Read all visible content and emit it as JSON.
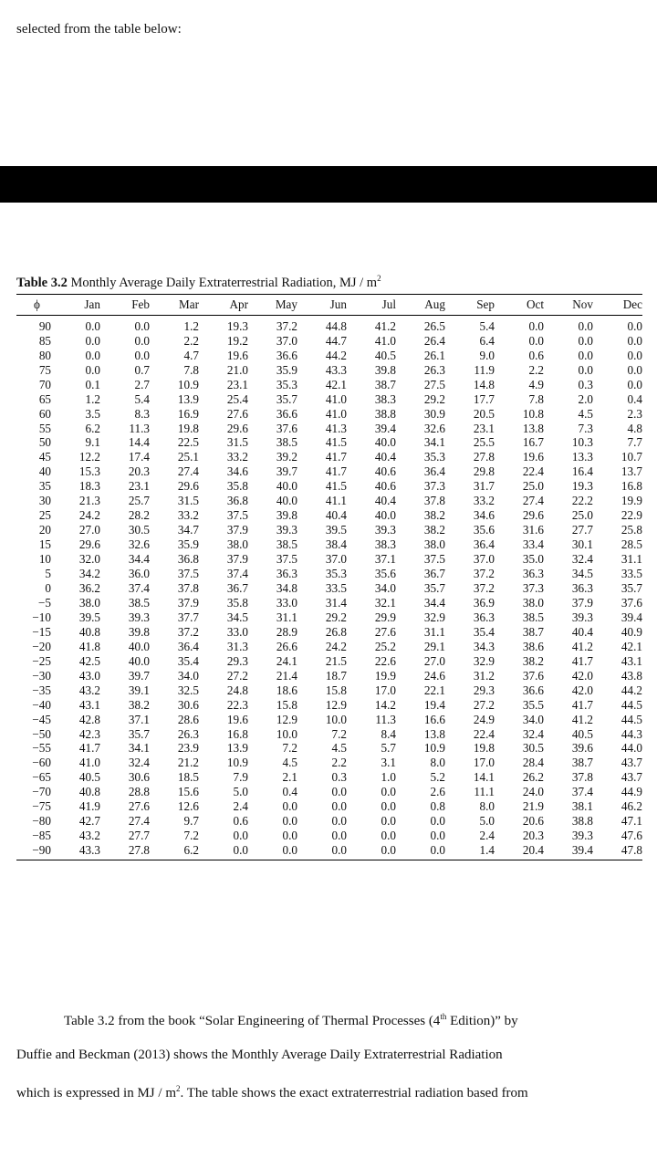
{
  "intro_text": "selected from the table below:",
  "table": {
    "caption_label": "Table 3.2",
    "caption_title": "Monthly Average Daily Extraterrestrial Radiation, MJ / m",
    "caption_sup": "2",
    "headers": [
      "ϕ",
      "Jan",
      "Feb",
      "Mar",
      "Apr",
      "May",
      "Jun",
      "Jul",
      "Aug",
      "Sep",
      "Oct",
      "Nov",
      "Dec"
    ],
    "rows": [
      [
        "90",
        "0.0",
        "0.0",
        "1.2",
        "19.3",
        "37.2",
        "44.8",
        "41.2",
        "26.5",
        "5.4",
        "0.0",
        "0.0",
        "0.0"
      ],
      [
        "85",
        "0.0",
        "0.0",
        "2.2",
        "19.2",
        "37.0",
        "44.7",
        "41.0",
        "26.4",
        "6.4",
        "0.0",
        "0.0",
        "0.0"
      ],
      [
        "80",
        "0.0",
        "0.0",
        "4.7",
        "19.6",
        "36.6",
        "44.2",
        "40.5",
        "26.1",
        "9.0",
        "0.6",
        "0.0",
        "0.0"
      ],
      [
        "75",
        "0.0",
        "0.7",
        "7.8",
        "21.0",
        "35.9",
        "43.3",
        "39.8",
        "26.3",
        "11.9",
        "2.2",
        "0.0",
        "0.0"
      ],
      [
        "70",
        "0.1",
        "2.7",
        "10.9",
        "23.1",
        "35.3",
        "42.1",
        "38.7",
        "27.5",
        "14.8",
        "4.9",
        "0.3",
        "0.0"
      ],
      [
        "65",
        "1.2",
        "5.4",
        "13.9",
        "25.4",
        "35.7",
        "41.0",
        "38.3",
        "29.2",
        "17.7",
        "7.8",
        "2.0",
        "0.4"
      ],
      [
        "60",
        "3.5",
        "8.3",
        "16.9",
        "27.6",
        "36.6",
        "41.0",
        "38.8",
        "30.9",
        "20.5",
        "10.8",
        "4.5",
        "2.3"
      ],
      [
        "55",
        "6.2",
        "11.3",
        "19.8",
        "29.6",
        "37.6",
        "41.3",
        "39.4",
        "32.6",
        "23.1",
        "13.8",
        "7.3",
        "4.8"
      ],
      [
        "50",
        "9.1",
        "14.4",
        "22.5",
        "31.5",
        "38.5",
        "41.5",
        "40.0",
        "34.1",
        "25.5",
        "16.7",
        "10.3",
        "7.7"
      ],
      [
        "45",
        "12.2",
        "17.4",
        "25.1",
        "33.2",
        "39.2",
        "41.7",
        "40.4",
        "35.3",
        "27.8",
        "19.6",
        "13.3",
        "10.7"
      ],
      [
        "40",
        "15.3",
        "20.3",
        "27.4",
        "34.6",
        "39.7",
        "41.7",
        "40.6",
        "36.4",
        "29.8",
        "22.4",
        "16.4",
        "13.7"
      ],
      [
        "35",
        "18.3",
        "23.1",
        "29.6",
        "35.8",
        "40.0",
        "41.5",
        "40.6",
        "37.3",
        "31.7",
        "25.0",
        "19.3",
        "16.8"
      ],
      [
        "30",
        "21.3",
        "25.7",
        "31.5",
        "36.8",
        "40.0",
        "41.1",
        "40.4",
        "37.8",
        "33.2",
        "27.4",
        "22.2",
        "19.9"
      ],
      [
        "25",
        "24.2",
        "28.2",
        "33.2",
        "37.5",
        "39.8",
        "40.4",
        "40.0",
        "38.2",
        "34.6",
        "29.6",
        "25.0",
        "22.9"
      ],
      [
        "20",
        "27.0",
        "30.5",
        "34.7",
        "37.9",
        "39.3",
        "39.5",
        "39.3",
        "38.2",
        "35.6",
        "31.6",
        "27.7",
        "25.8"
      ],
      [
        "15",
        "29.6",
        "32.6",
        "35.9",
        "38.0",
        "38.5",
        "38.4",
        "38.3",
        "38.0",
        "36.4",
        "33.4",
        "30.1",
        "28.5"
      ],
      [
        "10",
        "32.0",
        "34.4",
        "36.8",
        "37.9",
        "37.5",
        "37.0",
        "37.1",
        "37.5",
        "37.0",
        "35.0",
        "32.4",
        "31.1"
      ],
      [
        "5",
        "34.2",
        "36.0",
        "37.5",
        "37.4",
        "36.3",
        "35.3",
        "35.6",
        "36.7",
        "37.2",
        "36.3",
        "34.5",
        "33.5"
      ],
      [
        "0",
        "36.2",
        "37.4",
        "37.8",
        "36.7",
        "34.8",
        "33.5",
        "34.0",
        "35.7",
        "37.2",
        "37.3",
        "36.3",
        "35.7"
      ],
      [
        "−5",
        "38.0",
        "38.5",
        "37.9",
        "35.8",
        "33.0",
        "31.4",
        "32.1",
        "34.4",
        "36.9",
        "38.0",
        "37.9",
        "37.6"
      ],
      [
        "−10",
        "39.5",
        "39.3",
        "37.7",
        "34.5",
        "31.1",
        "29.2",
        "29.9",
        "32.9",
        "36.3",
        "38.5",
        "39.3",
        "39.4"
      ],
      [
        "−15",
        "40.8",
        "39.8",
        "37.2",
        "33.0",
        "28.9",
        "26.8",
        "27.6",
        "31.1",
        "35.4",
        "38.7",
        "40.4",
        "40.9"
      ],
      [
        "−20",
        "41.8",
        "40.0",
        "36.4",
        "31.3",
        "26.6",
        "24.2",
        "25.2",
        "29.1",
        "34.3",
        "38.6",
        "41.2",
        "42.1"
      ],
      [
        "−25",
        "42.5",
        "40.0",
        "35.4",
        "29.3",
        "24.1",
        "21.5",
        "22.6",
        "27.0",
        "32.9",
        "38.2",
        "41.7",
        "43.1"
      ],
      [
        "−30",
        "43.0",
        "39.7",
        "34.0",
        "27.2",
        "21.4",
        "18.7",
        "19.9",
        "24.6",
        "31.2",
        "37.6",
        "42.0",
        "43.8"
      ],
      [
        "−35",
        "43.2",
        "39.1",
        "32.5",
        "24.8",
        "18.6",
        "15.8",
        "17.0",
        "22.1",
        "29.3",
        "36.6",
        "42.0",
        "44.2"
      ],
      [
        "−40",
        "43.1",
        "38.2",
        "30.6",
        "22.3",
        "15.8",
        "12.9",
        "14.2",
        "19.4",
        "27.2",
        "35.5",
        "41.7",
        "44.5"
      ],
      [
        "−45",
        "42.8",
        "37.1",
        "28.6",
        "19.6",
        "12.9",
        "10.0",
        "11.3",
        "16.6",
        "24.9",
        "34.0",
        "41.2",
        "44.5"
      ],
      [
        "−50",
        "42.3",
        "35.7",
        "26.3",
        "16.8",
        "10.0",
        "7.2",
        "8.4",
        "13.8",
        "22.4",
        "32.4",
        "40.5",
        "44.3"
      ],
      [
        "−55",
        "41.7",
        "34.1",
        "23.9",
        "13.9",
        "7.2",
        "4.5",
        "5.7",
        "10.9",
        "19.8",
        "30.5",
        "39.6",
        "44.0"
      ],
      [
        "−60",
        "41.0",
        "32.4",
        "21.2",
        "10.9",
        "4.5",
        "2.2",
        "3.1",
        "8.0",
        "17.0",
        "28.4",
        "38.7",
        "43.7"
      ],
      [
        "−65",
        "40.5",
        "30.6",
        "18.5",
        "7.9",
        "2.1",
        "0.3",
        "1.0",
        "5.2",
        "14.1",
        "26.2",
        "37.8",
        "43.7"
      ],
      [
        "−70",
        "40.8",
        "28.8",
        "15.6",
        "5.0",
        "0.4",
        "0.0",
        "0.0",
        "2.6",
        "11.1",
        "24.0",
        "37.4",
        "44.9"
      ],
      [
        "−75",
        "41.9",
        "27.6",
        "12.6",
        "2.4",
        "0.0",
        "0.0",
        "0.0",
        "0.8",
        "8.0",
        "21.9",
        "38.1",
        "46.2"
      ],
      [
        "−80",
        "42.7",
        "27.4",
        "9.7",
        "0.6",
        "0.0",
        "0.0",
        "0.0",
        "0.0",
        "5.0",
        "20.6",
        "38.8",
        "47.1"
      ],
      [
        "−85",
        "43.2",
        "27.7",
        "7.2",
        "0.0",
        "0.0",
        "0.0",
        "0.0",
        "0.0",
        "2.4",
        "20.3",
        "39.3",
        "47.6"
      ],
      [
        "−90",
        "43.3",
        "27.8",
        "6.2",
        "0.0",
        "0.0",
        "0.0",
        "0.0",
        "0.0",
        "1.4",
        "20.4",
        "39.4",
        "47.8"
      ]
    ]
  },
  "body": {
    "line1": "Table 3.2 from the book “Solar Engineering of Thermal Processes (4",
    "line1_sup": "th",
    "line1_end": " Edition)” by",
    "line2": "Duffie and Beckman (2013) shows the Monthly Average Daily Extraterrestrial Radiation",
    "line3_a": "which is expressed in MJ / m",
    "line3_sup": "2",
    "line3_b": ". The table shows the exact extraterrestrial radiation based from"
  }
}
